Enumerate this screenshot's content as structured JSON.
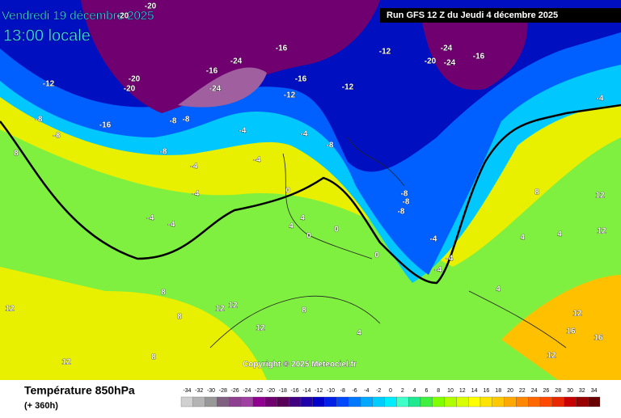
{
  "header": {
    "date": "Vendredi 19 décembre 2025",
    "time": "13:00 locale",
    "run": "Run GFS 12 Z du Jeudi 4 décembre 2025"
  },
  "copyright": "Copyright © 2025 Meteociel.fr",
  "footer": {
    "title": "Température 850hPa",
    "lead": "(+ 360h)"
  },
  "colorbar": {
    "ticks": [
      -34,
      -32,
      -30,
      -28,
      -26,
      -24,
      -22,
      -20,
      -18,
      -16,
      -14,
      -12,
      -10,
      -8,
      -6,
      -4,
      -2,
      0,
      2,
      4,
      6,
      8,
      10,
      12,
      14,
      16,
      18,
      20,
      22,
      24,
      26,
      28,
      30,
      32,
      34
    ],
    "colors": [
      "#d0d0d0",
      "#b4b4b4",
      "#989898",
      "#806080",
      "#904090",
      "#a040a0",
      "#900090",
      "#700070",
      "#580058",
      "#400080",
      "#2000a8",
      "#0000c8",
      "#0020e8",
      "#0048ff",
      "#0078ff",
      "#00a8ff",
      "#00ccff",
      "#00ecff",
      "#40ffc8",
      "#20e890",
      "#40f040",
      "#80ff00",
      "#b0ff00",
      "#d8ff00",
      "#ffff00",
      "#ffe400",
      "#ffc800",
      "#ffa800",
      "#ff8800",
      "#ff6800",
      "#ff4800",
      "#e82800",
      "#c80000",
      "#980000",
      "#680000"
    ]
  },
  "contour_labels": [
    -20,
    -20,
    -24,
    -20,
    -20,
    -16,
    -24,
    -16,
    -24,
    -16,
    -12,
    -20,
    -24,
    -16,
    -12,
    -12,
    -8,
    -8,
    -16,
    -12,
    -8,
    -8,
    -8,
    -4,
    -4,
    -8,
    -4,
    -4,
    -4,
    -4,
    0,
    0,
    4,
    4,
    0,
    0,
    -8,
    -8,
    -4,
    -4,
    -4,
    4,
    4,
    4,
    8,
    8,
    8,
    12,
    12,
    12,
    12,
    8,
    12,
    12,
    8,
    12,
    16,
    16,
    12,
    12,
    -4,
    -8,
    -4,
    8,
    4
  ]
}
